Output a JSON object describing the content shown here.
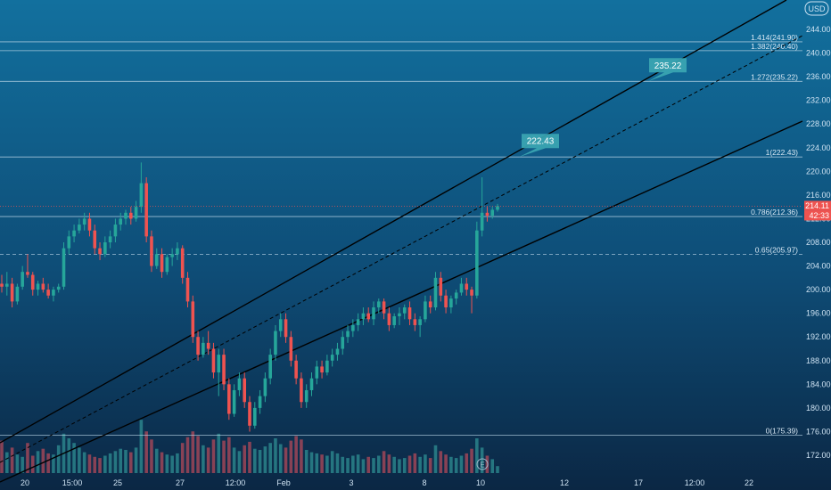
{
  "chart_data": {
    "type": "candlestick",
    "currency": "USD",
    "y_axis": {
      "min": 168,
      "max": 248,
      "ticks": [
        172,
        176,
        180,
        184,
        188,
        192,
        196,
        200,
        204,
        208,
        212,
        216,
        220,
        224,
        228,
        232,
        236,
        240,
        244
      ]
    },
    "x_axis": {
      "labels": [
        "20",
        "15:00",
        "25",
        "27",
        "12:00",
        "Feb",
        "3",
        "8",
        "10",
        "12",
        "17",
        "12:00",
        "22"
      ]
    },
    "price_badges": {
      "last_price": "214.11",
      "countdown": "42:33"
    },
    "fib_levels": [
      {
        "ratio": "1.414",
        "value": 241.9,
        "label": "1.414(241.90)"
      },
      {
        "ratio": "1.382",
        "value": 240.4,
        "label": "1.382(240.40)"
      },
      {
        "ratio": "1.272",
        "value": 235.22,
        "label": "1.272(235.22)"
      },
      {
        "ratio": "1",
        "value": 222.43,
        "label": "1(222.43)"
      },
      {
        "ratio": "0.786",
        "value": 212.36,
        "label": "0.786(212.36)"
      },
      {
        "ratio": "0.65",
        "value": 205.97,
        "label": "0.65(205.97)"
      },
      {
        "ratio": "0",
        "value": 175.39,
        "label": "0(175.39)"
      }
    ],
    "tags": [
      {
        "text": "222.43",
        "value": 222.43
      },
      {
        "text": "235.22",
        "value": 235.22
      }
    ],
    "channel": {
      "upper": "solid",
      "middle": "dashed",
      "lower": "solid"
    },
    "series": [
      {
        "name": "price",
        "ohlc": [
          [
            201,
            202.5,
            199.5,
            200.5
          ],
          [
            200.5,
            203,
            199,
            201
          ],
          [
            201,
            202,
            197,
            198
          ],
          [
            198,
            201,
            197.5,
            200.5
          ],
          [
            200.5,
            204,
            200,
            203
          ],
          [
            203,
            206,
            202,
            202.5
          ],
          [
            202.5,
            203,
            199,
            200
          ],
          [
            200,
            201.5,
            199,
            201
          ],
          [
            201,
            202,
            199.5,
            200
          ],
          [
            200,
            201,
            198.5,
            199
          ],
          [
            199,
            200.5,
            198,
            200
          ],
          [
            200,
            201,
            199.5,
            200.5
          ],
          [
            200.5,
            208,
            200,
            207
          ],
          [
            207,
            210,
            206,
            209
          ],
          [
            209,
            211,
            208,
            210
          ],
          [
            210,
            212,
            209.5,
            211
          ],
          [
            211,
            213,
            210,
            212
          ],
          [
            212,
            213,
            209,
            210
          ],
          [
            210,
            211,
            206,
            207
          ],
          [
            207,
            208,
            205,
            206
          ],
          [
            206,
            209,
            205.5,
            208
          ],
          [
            208,
            210,
            207,
            209
          ],
          [
            209,
            212,
            208,
            211
          ],
          [
            211,
            213,
            210,
            212
          ],
          [
            212,
            213.5,
            211,
            213
          ],
          [
            213,
            214,
            211,
            212
          ],
          [
            212,
            215,
            211.5,
            214
          ],
          [
            214,
            221.5,
            213,
            218
          ],
          [
            218,
            219,
            208,
            209
          ],
          [
            209,
            210,
            203,
            204
          ],
          [
            204,
            207,
            203.5,
            206
          ],
          [
            206,
            207,
            202,
            203
          ],
          [
            203,
            206,
            202.5,
            205.5
          ],
          [
            205.5,
            207,
            204,
            206
          ],
          [
            206,
            208,
            205,
            207
          ],
          [
            207,
            207.5,
            201,
            202
          ],
          [
            202,
            203,
            197,
            198
          ],
          [
            198,
            199,
            191,
            192
          ],
          [
            192,
            193,
            188,
            189
          ],
          [
            189,
            192,
            188.5,
            191
          ],
          [
            191,
            193,
            189,
            190
          ],
          [
            190,
            191,
            185,
            186
          ],
          [
            186,
            190,
            182,
            189
          ],
          [
            189,
            190,
            183,
            184
          ],
          [
            184,
            185,
            178,
            179
          ],
          [
            179,
            184,
            178.5,
            183
          ],
          [
            183,
            186,
            182,
            185
          ],
          [
            185,
            186,
            180,
            181
          ],
          [
            181,
            182,
            176,
            177
          ],
          [
            177,
            181,
            176.5,
            180
          ],
          [
            180,
            183,
            179,
            182
          ],
          [
            182,
            186,
            181,
            185
          ],
          [
            185,
            190,
            184,
            189
          ],
          [
            189,
            194,
            188,
            193
          ],
          [
            193,
            196,
            192,
            195
          ],
          [
            195,
            196,
            191,
            192
          ],
          [
            192,
            193,
            187,
            188
          ],
          [
            188,
            189,
            184,
            185
          ],
          [
            185,
            186,
            180,
            181
          ],
          [
            181,
            184,
            180,
            183
          ],
          [
            183,
            186,
            182,
            185
          ],
          [
            185,
            188,
            184,
            187
          ],
          [
            187,
            188,
            185,
            186
          ],
          [
            186,
            189,
            185.5,
            188
          ],
          [
            188,
            190,
            187,
            189
          ],
          [
            189,
            191,
            188,
            190
          ],
          [
            190,
            193,
            189,
            192
          ],
          [
            192,
            194,
            191,
            193
          ],
          [
            193,
            195,
            192,
            194
          ],
          [
            194,
            196,
            193,
            195
          ],
          [
            195,
            197,
            194,
            196
          ],
          [
            196,
            197,
            194.5,
            195
          ],
          [
            195,
            198,
            194,
            197
          ],
          [
            197,
            198.5,
            196,
            198
          ],
          [
            198,
            198.5,
            195,
            196
          ],
          [
            196,
            197,
            193,
            194
          ],
          [
            194,
            196,
            193.5,
            195.5
          ],
          [
            195.5,
            197,
            194,
            196
          ],
          [
            196,
            197.5,
            195,
            197
          ],
          [
            197,
            198,
            194,
            195
          ],
          [
            195,
            196,
            193,
            194
          ],
          [
            194,
            195.5,
            192,
            195
          ],
          [
            195,
            199,
            194.5,
            198
          ],
          [
            198,
            199,
            196,
            197
          ],
          [
            197,
            203,
            196.5,
            202
          ],
          [
            202,
            203,
            198,
            199
          ],
          [
            199,
            200,
            196,
            197
          ],
          [
            197,
            199,
            196,
            198.5
          ],
          [
            198.5,
            200,
            197.5,
            199.5
          ],
          [
            199.5,
            202,
            199,
            201
          ],
          [
            201,
            202,
            199,
            200
          ],
          [
            200,
            200.5,
            196,
            199
          ],
          [
            199,
            211.5,
            198.5,
            210
          ],
          [
            210,
            219,
            209,
            213
          ],
          [
            213,
            214,
            211.5,
            212.5
          ],
          [
            212.5,
            214,
            212,
            213.5
          ],
          [
            213.5,
            214.5,
            213.2,
            214.11
          ]
        ]
      },
      {
        "name": "volume",
        "values": [
          2.8,
          1.8,
          2.2,
          1.6,
          1.4,
          2.6,
          1.5,
          1.9,
          2.1,
          1.7,
          1.6,
          2.4,
          3.4,
          3.0,
          2.6,
          2.2,
          1.8,
          1.6,
          1.4,
          1.3,
          1.5,
          1.7,
          1.9,
          2.1,
          2.0,
          1.8,
          2.2,
          4.6,
          3.6,
          2.9,
          2.1,
          1.8,
          1.6,
          1.5,
          1.7,
          2.6,
          3.1,
          3.6,
          3.2,
          2.4,
          2.2,
          2.9,
          3.4,
          2.8,
          3.1,
          2.2,
          1.9,
          2.4,
          2.7,
          2.1,
          2.0,
          2.3,
          2.6,
          3.0,
          2.5,
          2.2,
          2.8,
          3.2,
          2.9,
          2.0,
          1.8,
          1.7,
          1.6,
          1.5,
          1.9,
          1.7,
          1.4,
          1.3,
          1.5,
          1.6,
          1.2,
          1.4,
          1.3,
          1.5,
          1.9,
          1.6,
          1.4,
          1.2,
          1.3,
          1.5,
          1.7,
          1.4,
          1.6,
          1.3,
          2.4,
          1.9,
          1.6,
          1.4,
          1.3,
          1.5,
          1.7,
          2.1,
          3.0,
          2.2,
          1.5,
          1.2,
          0.6
        ]
      }
    ],
    "colors": {
      "background_top": "#12709e",
      "background_bottom": "#0b2744",
      "up": "#26a69a",
      "down": "#ef5350",
      "volume_up": "#2f8f93",
      "volume_down": "#b24a5a",
      "channel_line": "#000000",
      "fib_line": "#b9d4e6",
      "tag_bg": "#3ba6b2",
      "last_price_bg": "#ef5350"
    }
  }
}
